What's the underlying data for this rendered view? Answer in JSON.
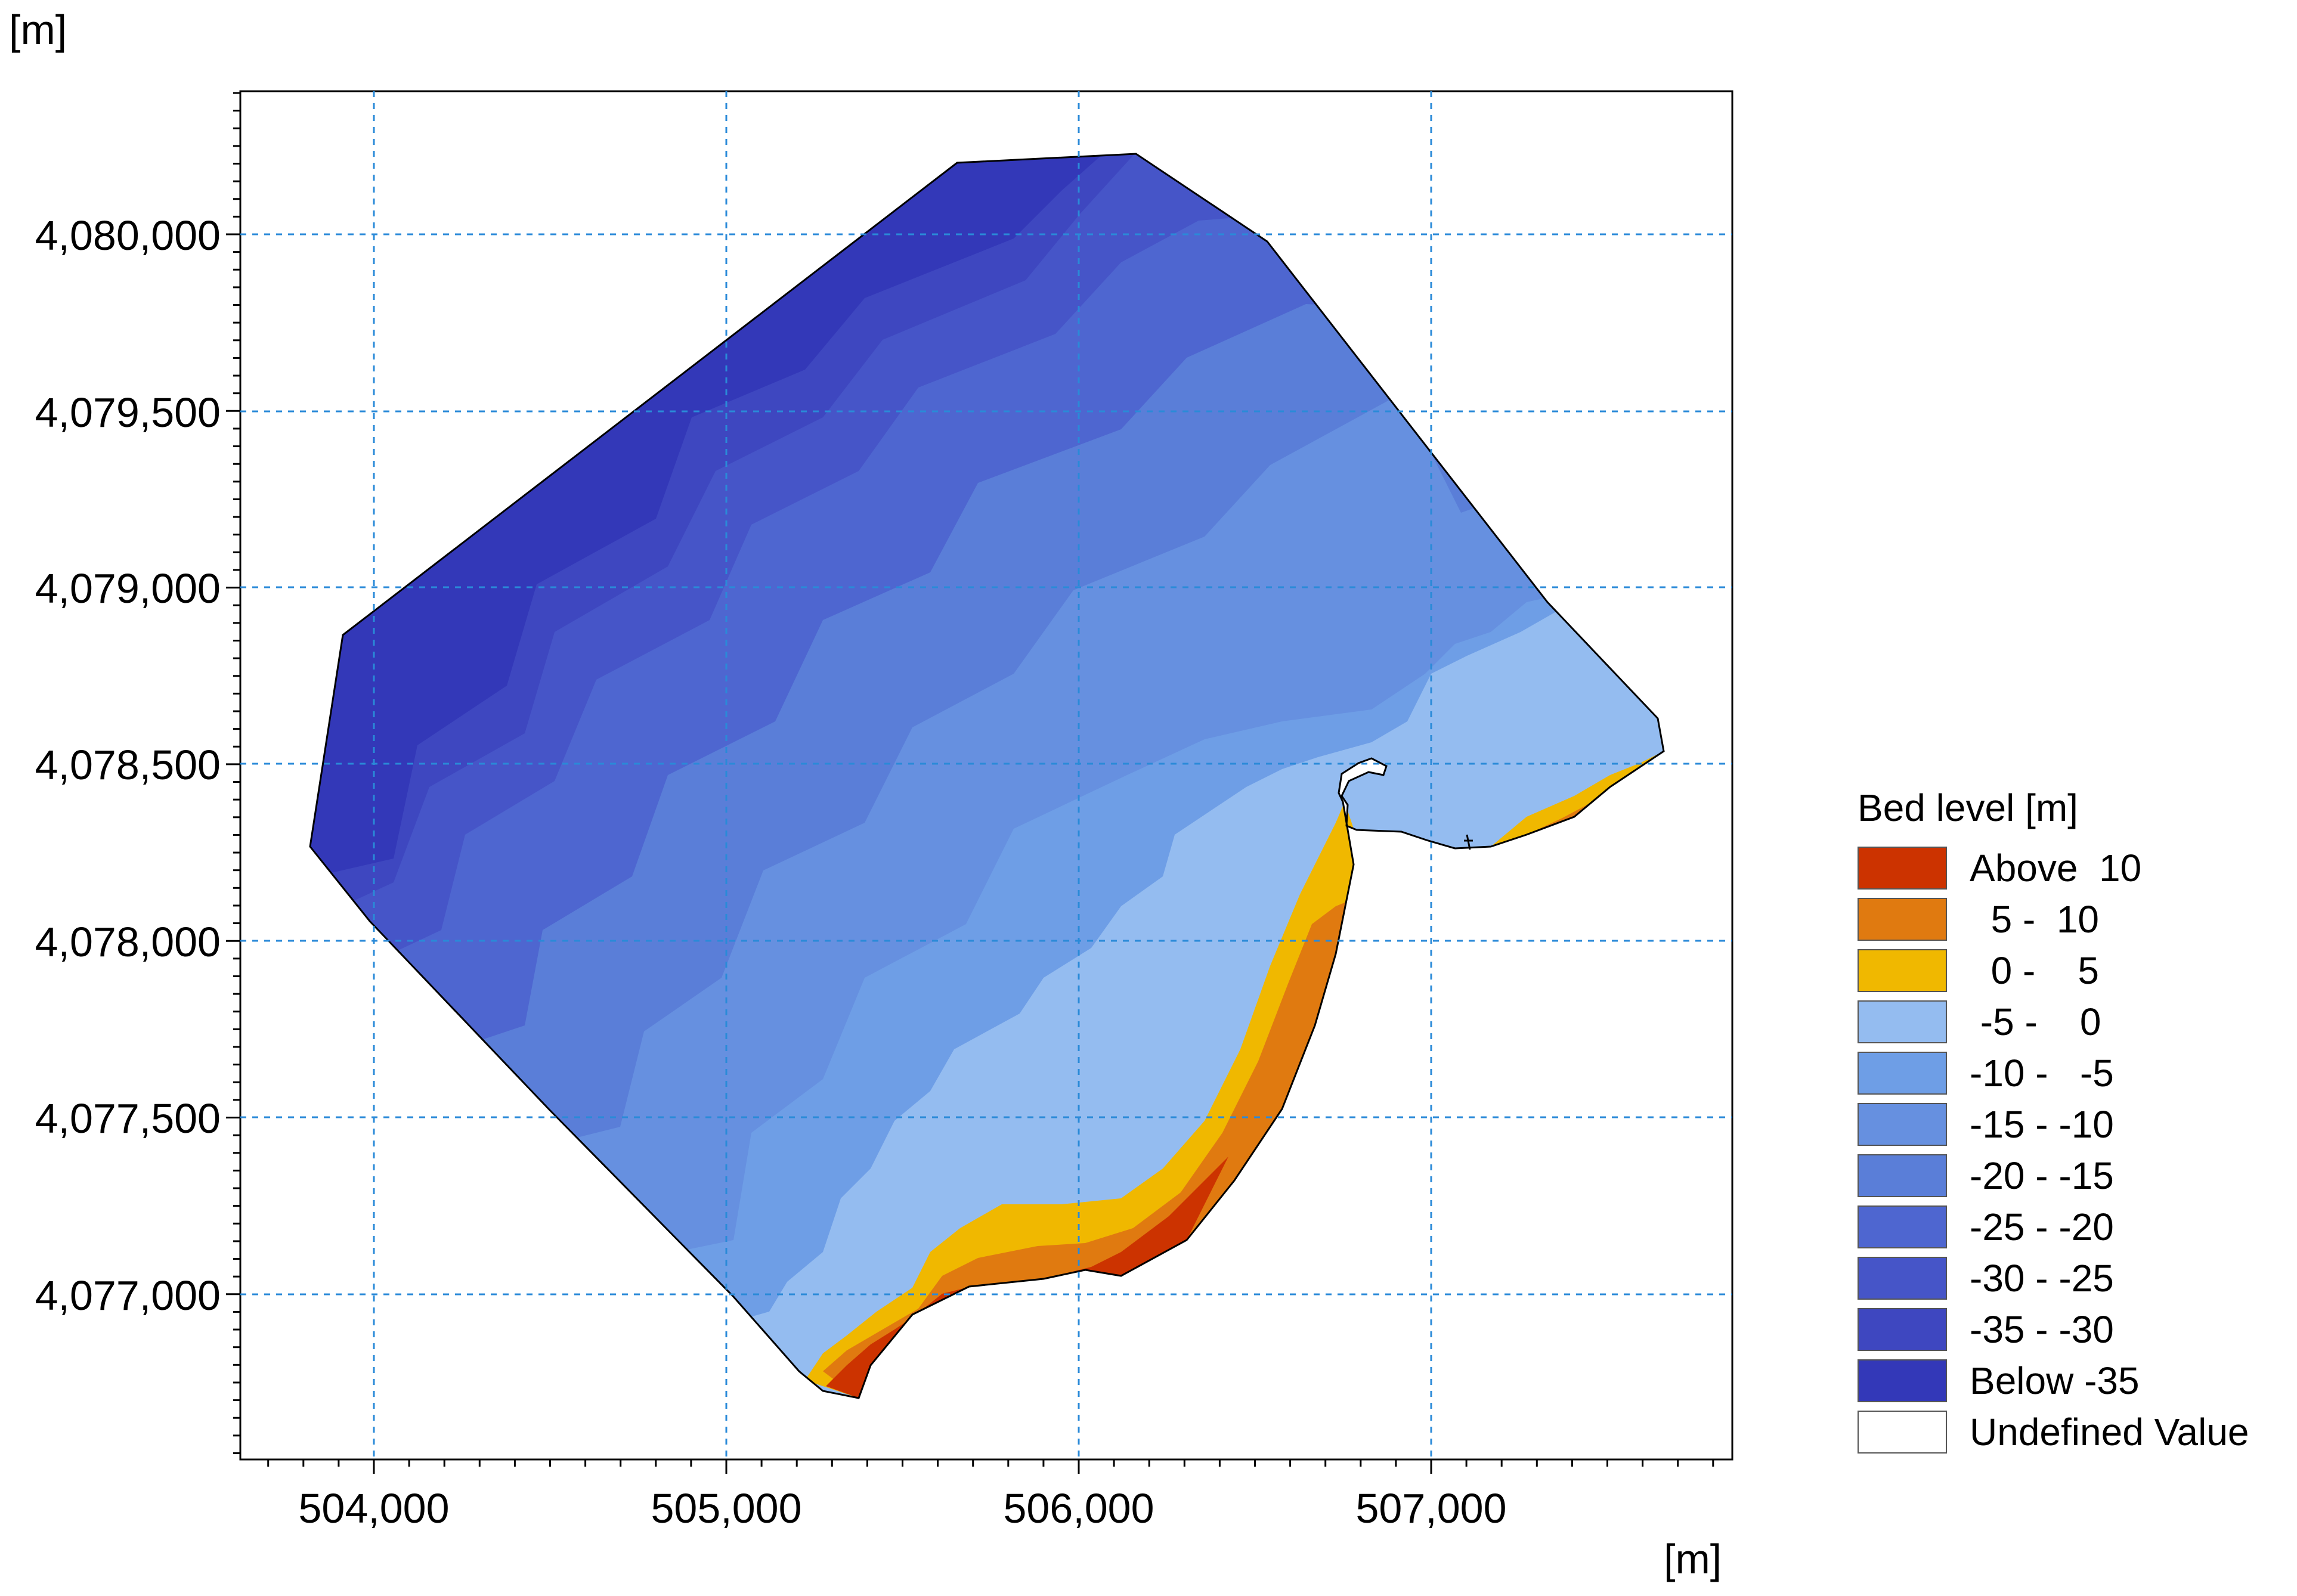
{
  "axis_units": {
    "x": "[m]",
    "y": "[m]"
  },
  "x_ticks": [
    "504,000",
    "505,000",
    "506,000",
    "507,000"
  ],
  "y_ticks": [
    "4,080,000",
    "4,079,500",
    "4,079,000",
    "4,078,500",
    "4,078,000",
    "4,077,500",
    "4,077,000"
  ],
  "legend": {
    "title": "Bed level [m]",
    "items": [
      {
        "label": "Above  10",
        "color": "#cc3300"
      },
      {
        "label": "  5 -  10",
        "color": "#e07a10"
      },
      {
        "label": "  0 -    5",
        "color": "#f0b800"
      },
      {
        "label": " -5 -    0",
        "color": "#94bcf0"
      },
      {
        "label": "-10 -   -5",
        "color": "#6e9ee6"
      },
      {
        "label": "-15 - -10",
        "color": "#6690e0"
      },
      {
        "label": "-20 - -15",
        "color": "#5a7ed8"
      },
      {
        "label": "-25 - -20",
        "color": "#4e66d0"
      },
      {
        "label": "-30 - -25",
        "color": "#4655c8"
      },
      {
        "label": "-35 - -30",
        "color": "#3e47c0"
      },
      {
        "label": "Below -35",
        "color": "#3338b8"
      },
      {
        "label": "Undefined Value",
        "color": "#ffffff"
      }
    ]
  },
  "map": {
    "x_range": [
      503630,
      507860
    ],
    "y_range": [
      4076450,
      4080400
    ],
    "grid": true,
    "legend_position": "right"
  }
}
